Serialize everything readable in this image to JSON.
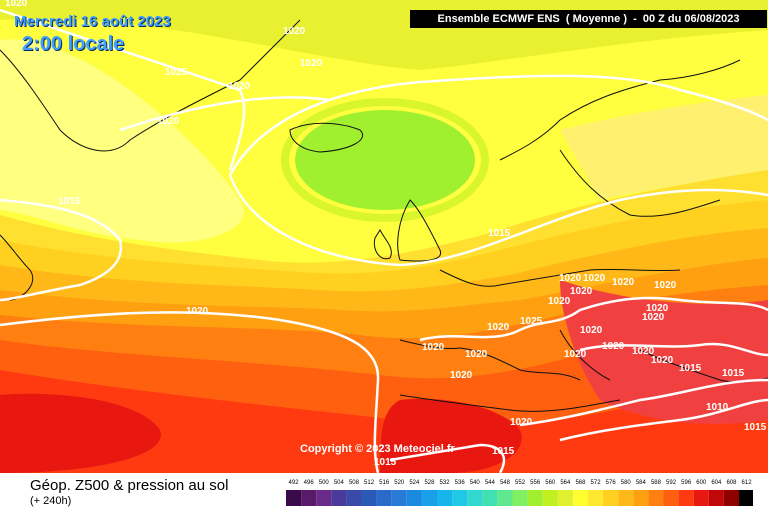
{
  "header": {
    "date_label": "Mercredi 16 août 2023",
    "time_label": "2:00 locale",
    "model_label": "Ensemble ECMWF ENS  ( Moyenne )  -  00 Z du 06/08/2023"
  },
  "copyright": "Copyright © 2023 Meteociel.fr",
  "footer": {
    "title": "Géop. Z500 & pression au sol",
    "subtitle": "(+ 240h)"
  },
  "scale": {
    "values": [
      "492",
      "496",
      "500",
      "504",
      "508",
      "512",
      "516",
      "520",
      "524",
      "528",
      "532",
      "536",
      "540",
      "544",
      "548",
      "552",
      "556",
      "560",
      "564",
      "568",
      "572",
      "576",
      "580",
      "584",
      "588",
      "592",
      "596",
      "600",
      "604",
      "608",
      "612"
    ],
    "colors": [
      "#3a0a4a",
      "#5a1a6a",
      "#6a2a8a",
      "#4a3a9a",
      "#3a4aaa",
      "#2a5ab8",
      "#2a6ac8",
      "#2a7ad8",
      "#1a8ae0",
      "#1aa0e8",
      "#1ab4ec",
      "#20c8e8",
      "#30d8d0",
      "#40e0b0",
      "#60e890",
      "#80f060",
      "#a0f030",
      "#c0f020",
      "#e0f030",
      "#ffff30",
      "#ffe830",
      "#ffd020",
      "#ffb818",
      "#ffa010",
      "#ff8010",
      "#ff6010",
      "#ff3a10",
      "#e81810",
      "#c00808",
      "#900000",
      "#000000"
    ]
  },
  "isobars": [
    "1020",
    "1020",
    "1020",
    "1025",
    "1020",
    "1020",
    "1015",
    "1015",
    "1020",
    "1020",
    "1020",
    "1020",
    "1020",
    "1020",
    "1020",
    "1020",
    "1025",
    "1020",
    "1020",
    "1020",
    "1020",
    "1020",
    "1020",
    "1020",
    "1020",
    "1020",
    "1020",
    "1015",
    "1015",
    "1010",
    "1020",
    "1015",
    "1015",
    "1015"
  ],
  "colors": {
    "isobar": "#ffffff",
    "land": "#111111"
  }
}
